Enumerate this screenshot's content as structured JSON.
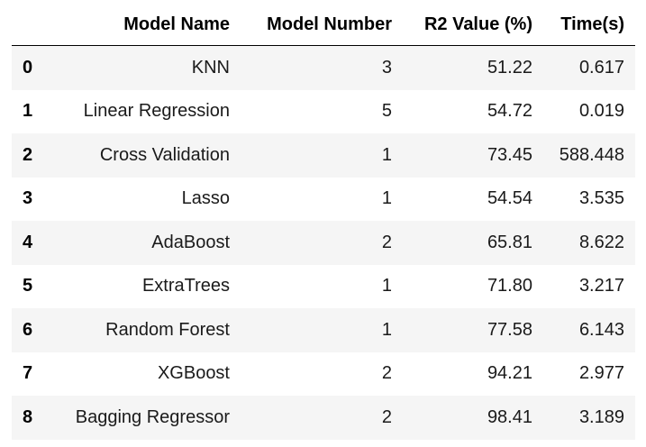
{
  "table": {
    "columns": [
      "Model Name",
      "Model Number",
      "R2 Value (%)",
      "Time(s)"
    ],
    "rows": [
      {
        "index": "0",
        "model_name": "KNN",
        "model_number": "3",
        "r2": "51.22",
        "time": "0.617"
      },
      {
        "index": "1",
        "model_name": "Linear Regression",
        "model_number": "5",
        "r2": "54.72",
        "time": "0.019"
      },
      {
        "index": "2",
        "model_name": "Cross Validation",
        "model_number": "1",
        "r2": "73.45",
        "time": "588.448"
      },
      {
        "index": "3",
        "model_name": "Lasso",
        "model_number": "1",
        "r2": "54.54",
        "time": "3.535"
      },
      {
        "index": "4",
        "model_name": "AdaBoost",
        "model_number": "2",
        "r2": "65.81",
        "time": "8.622"
      },
      {
        "index": "5",
        "model_name": "ExtraTrees",
        "model_number": "1",
        "r2": "71.80",
        "time": "3.217"
      },
      {
        "index": "6",
        "model_name": "Random Forest",
        "model_number": "1",
        "r2": "77.58",
        "time": "6.143"
      },
      {
        "index": "7",
        "model_name": "XGBoost",
        "model_number": "2",
        "r2": "94.21",
        "time": "2.977"
      },
      {
        "index": "8",
        "model_name": "Bagging Regressor",
        "model_number": "2",
        "r2": "98.41",
        "time": "3.189"
      }
    ]
  }
}
